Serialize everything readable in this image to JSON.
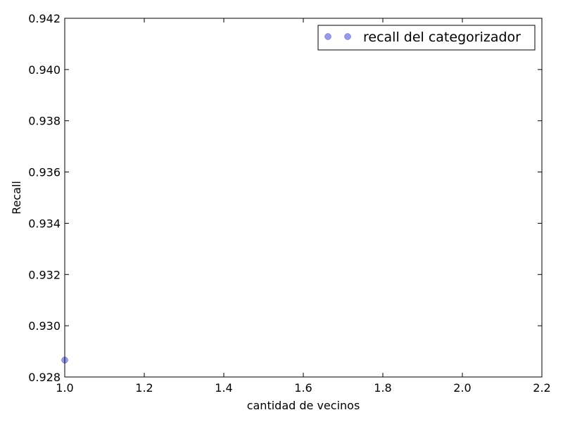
{
  "chart_data": {
    "type": "scatter",
    "xlabel": "cantidad de vecinos",
    "ylabel": "Recall",
    "xlim": [
      1.0,
      2.2
    ],
    "ylim": [
      0.928,
      0.942
    ],
    "x_ticks": [
      "1.0",
      "1.2",
      "1.4",
      "1.6",
      "1.8",
      "2.0",
      "2.2"
    ],
    "y_ticks": [
      "0.928",
      "0.930",
      "0.932",
      "0.934",
      "0.936",
      "0.938",
      "0.940",
      "0.942"
    ],
    "grid": false,
    "legend_position": "top-right",
    "series": [
      {
        "name": "recall del categorizador",
        "color": "#8080e6",
        "points": [
          {
            "x": 1.0,
            "y": 0.92866
          }
        ]
      }
    ]
  }
}
